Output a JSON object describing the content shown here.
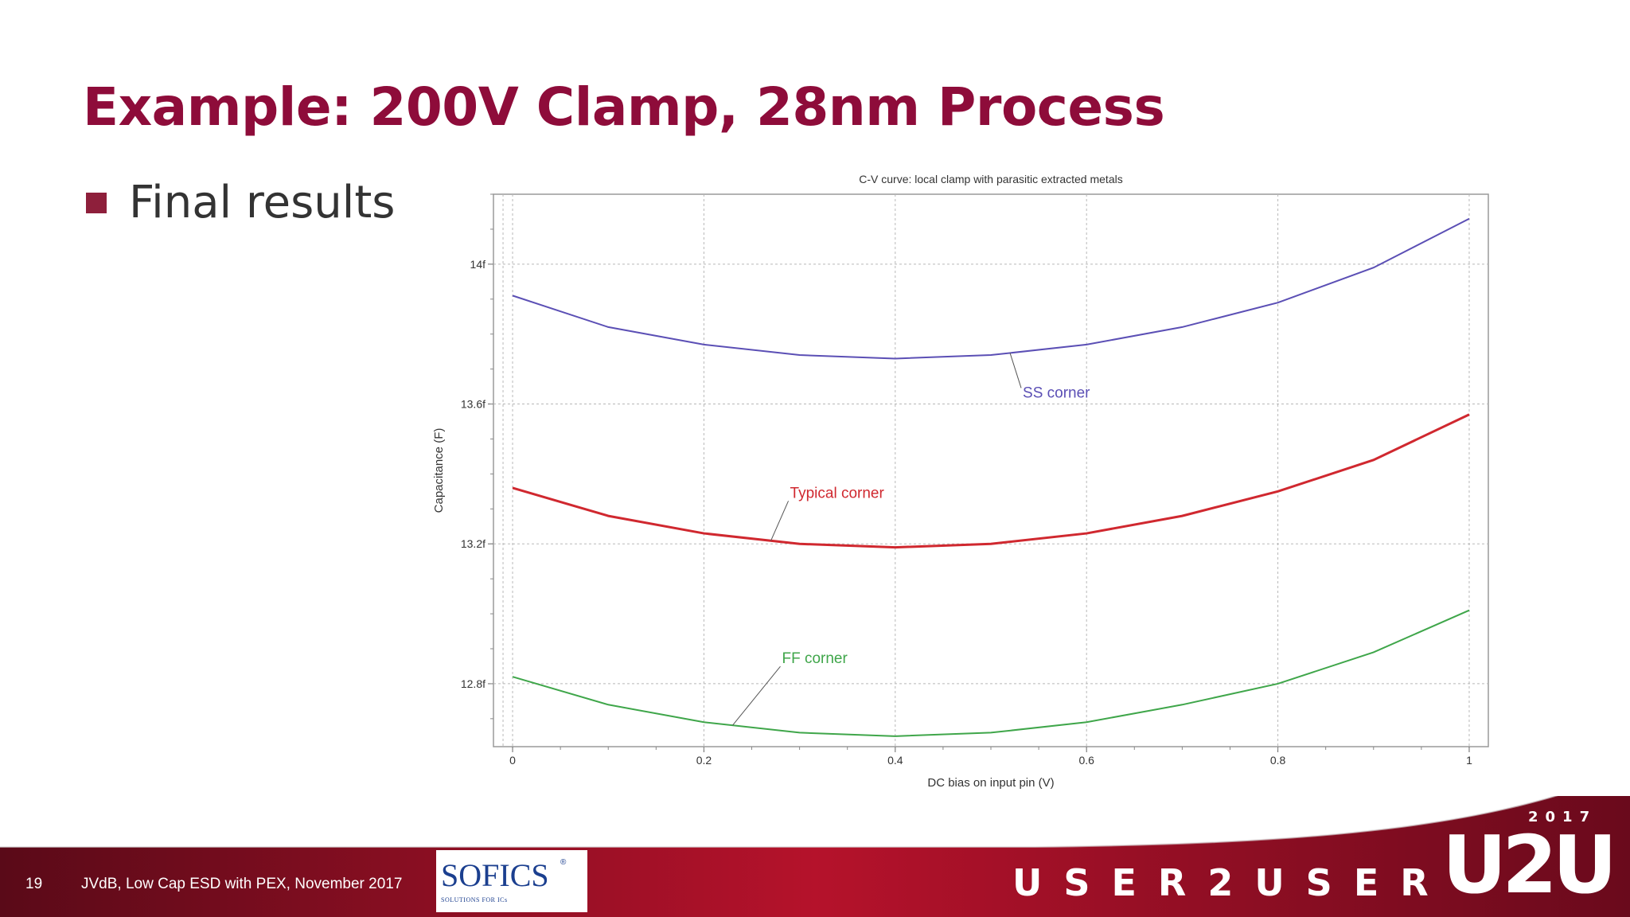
{
  "slide": {
    "title": "Example: 200V Clamp, 28nm Process",
    "bullet": "Final results",
    "page_number": "19",
    "footer_note": "JVdB, Low Cap ESD with PEX, November 2017",
    "logo": {
      "name": "SOFICS",
      "text": "SOFICS",
      "tagline": "SOLUTIONS FOR ICs",
      "registered": "®"
    },
    "brand": {
      "text": "USER2USER",
      "badge_year": "2017",
      "badge_mark": "U2U"
    },
    "colors": {
      "title": "#8e0c3a",
      "footer_dark": "#5a0a18",
      "footer_red": "#b5122b"
    }
  },
  "chart_data": {
    "type": "line",
    "title": "C-V curve: local clamp with parasitic extracted metals",
    "xlabel": "DC bias on input pin (V)",
    "ylabel": "Capacitance (F)",
    "xlim": [
      -0.02,
      1.02
    ],
    "ylim": [
      12.62,
      14.2
    ],
    "xticks": [
      0,
      0.2,
      0.4,
      0.6,
      0.8,
      1
    ],
    "xtick_labels": [
      "0",
      "0.2",
      "0.4",
      "0.6",
      "0.8",
      "1"
    ],
    "yticks": [
      12.8,
      13.2,
      13.6,
      14.0
    ],
    "ytick_labels": [
      "12.8f",
      "13.2f",
      "13.6f",
      "14f"
    ],
    "grid": true,
    "x": [
      0,
      0.1,
      0.2,
      0.3,
      0.4,
      0.5,
      0.6,
      0.7,
      0.8,
      0.9,
      1.0
    ],
    "series": [
      {
        "name": "SS corner",
        "color": "#5b4fb5",
        "values": [
          13.91,
          13.82,
          13.77,
          13.74,
          13.73,
          13.74,
          13.77,
          13.82,
          13.89,
          13.99,
          14.13
        ]
      },
      {
        "name": "Typical corner",
        "color": "#d0282f",
        "values": [
          13.36,
          13.28,
          13.23,
          13.2,
          13.19,
          13.2,
          13.23,
          13.28,
          13.35,
          13.44,
          13.57
        ]
      },
      {
        "name": "FF corner",
        "color": "#3fa64a",
        "values": [
          12.82,
          12.74,
          12.69,
          12.66,
          12.65,
          12.66,
          12.69,
          12.74,
          12.8,
          12.89,
          13.01
        ]
      }
    ],
    "annotations": [
      {
        "text": "SS corner",
        "series": 0,
        "at_x": 0.52
      },
      {
        "text": "Typical corner",
        "series": 1,
        "at_x": 0.27
      },
      {
        "text": "FF corner",
        "series": 2,
        "at_x": 0.23
      }
    ]
  }
}
